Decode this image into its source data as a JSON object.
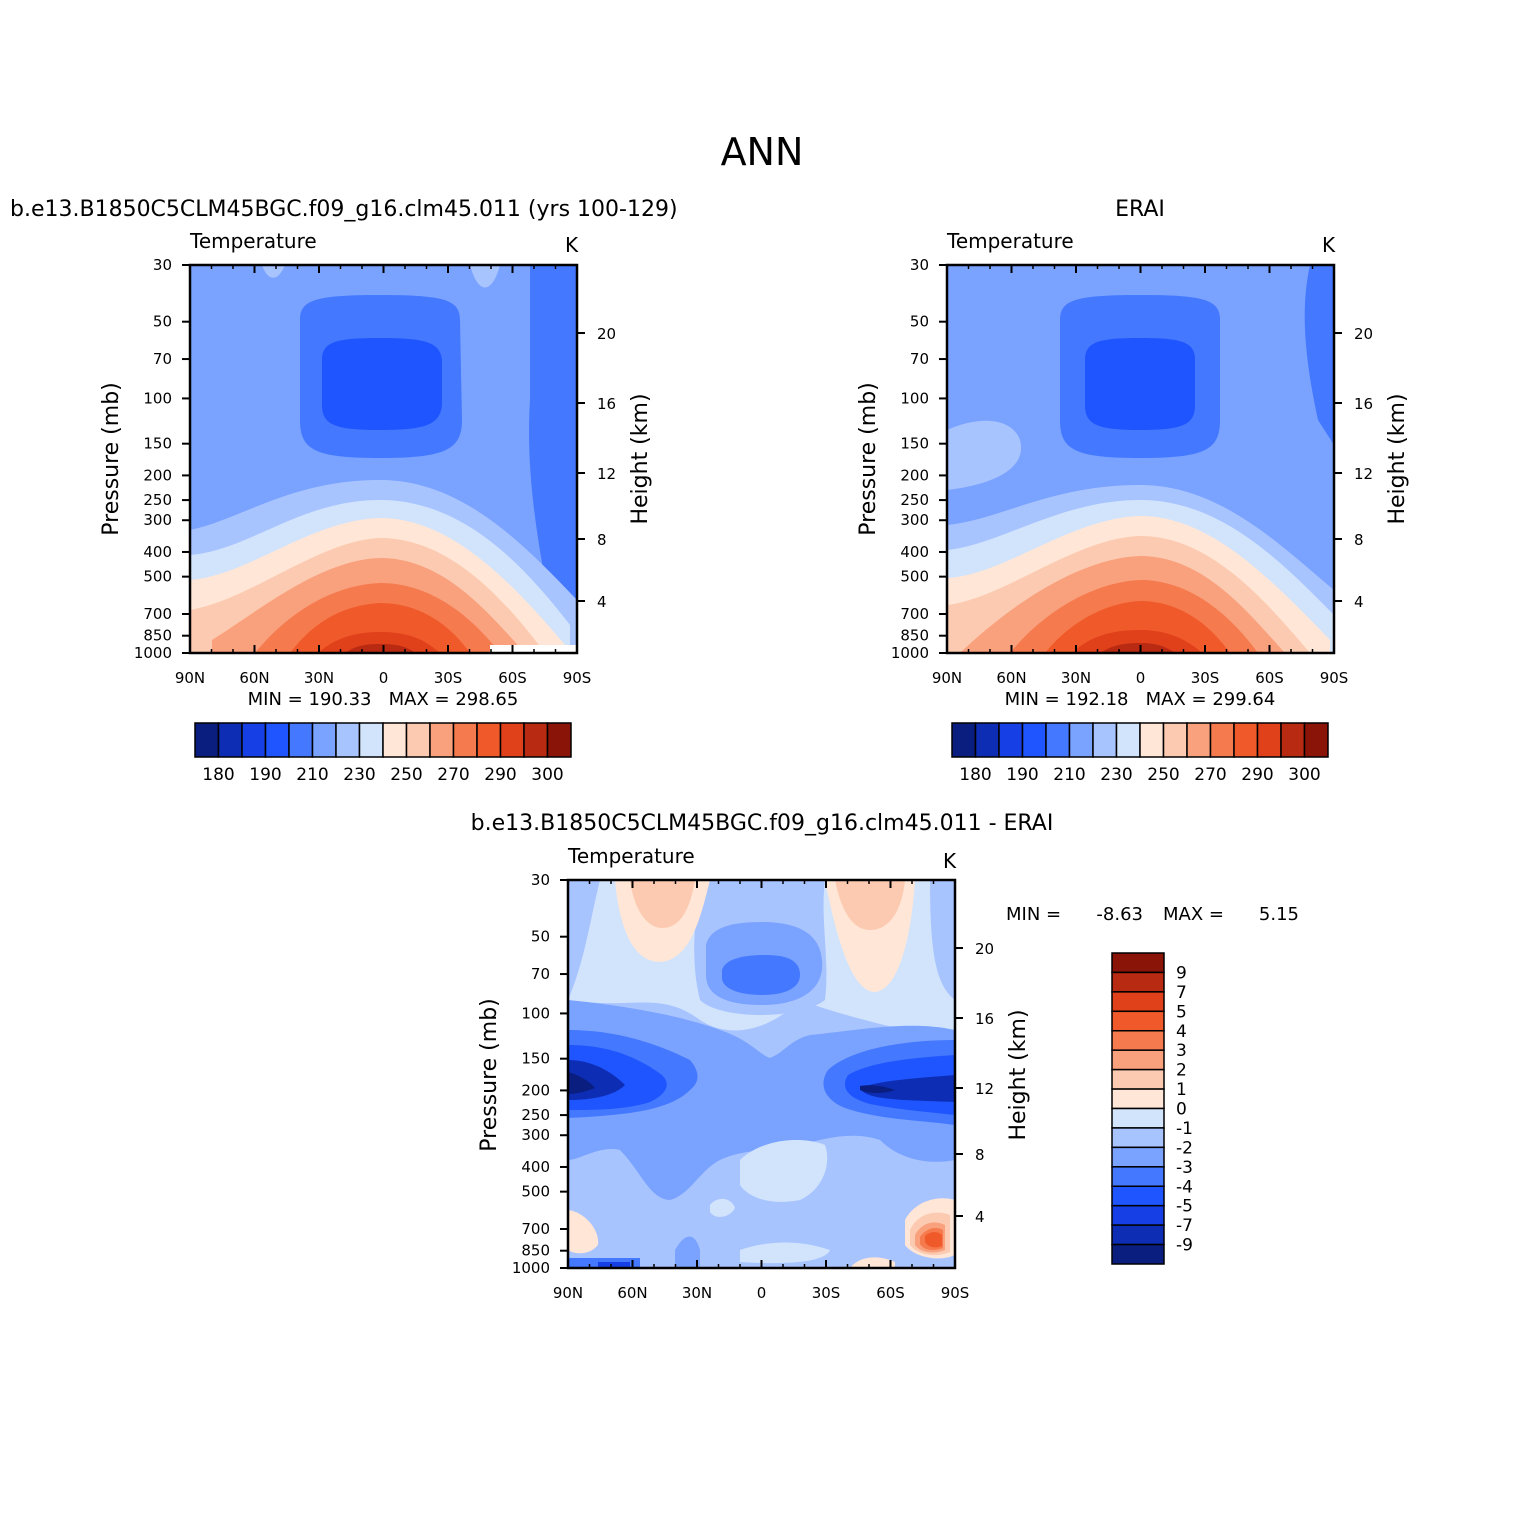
{
  "page": {
    "main_title": "ANN"
  },
  "colors": {
    "abs_scale": [
      "#0a1e80",
      "#0d2db5",
      "#1640e6",
      "#1f55ff",
      "#4478ff",
      "#7aa2ff",
      "#a8c4ff",
      "#d2e4fc",
      "#ffe6d6",
      "#fccab0",
      "#f9a07d",
      "#f57a4e",
      "#f05a2a",
      "#e0401a",
      "#b82a12",
      "#8a1408"
    ],
    "diff_scale": [
      "#0a1e80",
      "#0d2db5",
      "#1640e6",
      "#1f55ff",
      "#4478ff",
      "#7aa2ff",
      "#a8c4ff",
      "#d2e4fc",
      "#ffe6d6",
      "#fccab0",
      "#f9a07d",
      "#f57a4e",
      "#f05a2a",
      "#e0401a",
      "#b82a12",
      "#8a1408"
    ]
  },
  "chart_data": [
    {
      "type": "heatmap",
      "title": "b.e13.B1850C5CLM45BGC.f09_g16.clm45.011 (yrs 100-129)",
      "left_label": "Temperature",
      "right_label": "K",
      "ylabel": "Pressure (mb)",
      "y2label": "Height (km)",
      "x_ticks": [
        "90N",
        "60N",
        "30N",
        "0",
        "30S",
        "60S",
        "90S"
      ],
      "y_ticks": [
        "30",
        "50",
        "70",
        "100",
        "150",
        "200",
        "250",
        "300",
        "400",
        "500",
        "700",
        "850",
        "1000"
      ],
      "y2_ticks": [
        "20",
        "16",
        "12",
        "8",
        "4"
      ],
      "stats": "MIN = 190.33   MAX = 298.65",
      "colorbar_labels": [
        "180",
        "190",
        "210",
        "230",
        "250",
        "270",
        "290",
        "300"
      ],
      "min": 190.33,
      "max": 298.65
    },
    {
      "type": "heatmap",
      "title": "ERAI",
      "left_label": "Temperature",
      "right_label": "K",
      "ylabel": "Pressure (mb)",
      "y2label": "Height (km)",
      "x_ticks": [
        "90N",
        "60N",
        "30N",
        "0",
        "30S",
        "60S",
        "90S"
      ],
      "y_ticks": [
        "30",
        "50",
        "70",
        "100",
        "150",
        "200",
        "250",
        "300",
        "400",
        "500",
        "700",
        "850",
        "1000"
      ],
      "y2_ticks": [
        "20",
        "16",
        "12",
        "8",
        "4"
      ],
      "stats": "MIN = 192.18   MAX = 299.64",
      "colorbar_labels": [
        "180",
        "190",
        "210",
        "230",
        "250",
        "270",
        "290",
        "300"
      ],
      "min": 192.18,
      "max": 299.64
    },
    {
      "type": "heatmap",
      "title": "b.e13.B1850C5CLM45BGC.f09_g16.clm45.011 - ERAI",
      "left_label": "Temperature",
      "right_label": "K",
      "ylabel": "Pressure (mb)",
      "y2label": "Height (km)",
      "x_ticks": [
        "90N",
        "60N",
        "30N",
        "0",
        "30S",
        "60S",
        "90S"
      ],
      "y_ticks": [
        "30",
        "50",
        "70",
        "100",
        "150",
        "200",
        "250",
        "300",
        "400",
        "500",
        "700",
        "850",
        "1000"
      ],
      "y2_ticks": [
        "20",
        "16",
        "12",
        "8",
        "4"
      ],
      "stats_min_label": "MIN =",
      "stats_min": "-8.63",
      "stats_max_label": "MAX =",
      "stats_max": "5.15",
      "colorbar_labels": [
        "9",
        "7",
        "5",
        "4",
        "3",
        "2",
        "1",
        "0",
        "-1",
        "-2",
        "-3",
        "-4",
        "-5",
        "-7",
        "-9"
      ],
      "min": -8.63,
      "max": 5.15
    }
  ]
}
